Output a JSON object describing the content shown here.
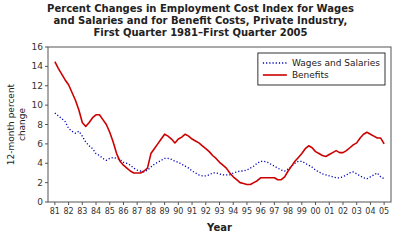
{
  "chart_data": {
    "type": "line",
    "title": "Percent Changes in Employment Cost Index for Wages\nand Salaries and for Benefit Costs, Private Industry,\nFirst Quarter 1981–First Quarter 2005",
    "x_label": "Year",
    "y_label": "12-month percent\nchange",
    "x": [
      81,
      81.25,
      81.5,
      81.75,
      82,
      82.25,
      82.5,
      82.75,
      83,
      83.25,
      83.5,
      83.75,
      84,
      84.25,
      84.5,
      84.75,
      85,
      85.25,
      85.5,
      85.75,
      86,
      86.25,
      86.5,
      86.75,
      87,
      87.25,
      87.5,
      87.75,
      88,
      88.25,
      88.5,
      88.75,
      89,
      89.25,
      89.5,
      89.75,
      90,
      90.25,
      90.5,
      90.75,
      91,
      91.25,
      91.5,
      91.75,
      92,
      92.25,
      92.5,
      92.75,
      93,
      93.25,
      93.5,
      93.75,
      94,
      94.25,
      94.5,
      94.75,
      95,
      95.25,
      95.5,
      95.75,
      96,
      96.25,
      96.5,
      96.75,
      97,
      97.25,
      97.5,
      97.75,
      98,
      98.25,
      98.5,
      98.75,
      99,
      99.25,
      99.5,
      99.75,
      100,
      100.25,
      100.5,
      100.75,
      101,
      101.25,
      101.5,
      101.75,
      102,
      102.25,
      102.5,
      102.75,
      103,
      103.25,
      103.5,
      103.75,
      104,
      104.25,
      104.5,
      104.75,
      105
    ],
    "xlim": [
      80.5,
      105.5
    ],
    "xticks": [
      81,
      82,
      83,
      84,
      85,
      86,
      87,
      88,
      89,
      90,
      91,
      92,
      93,
      94,
      95,
      96,
      97,
      98,
      99,
      {
        "value": 100,
        "label": "00"
      },
      {
        "value": 101,
        "label": "01"
      },
      {
        "value": 102,
        "label": "02"
      },
      {
        "value": 103,
        "label": "03"
      },
      {
        "value": 104,
        "label": "04"
      },
      {
        "value": 105,
        "label": "05"
      }
    ],
    "ylim": [
      0,
      16
    ],
    "yticks": [
      0,
      2,
      4,
      6,
      8,
      10,
      12,
      14,
      16
    ],
    "grid": false,
    "legend": "upper right",
    "series": [
      {
        "name": "Wages and Salaries",
        "color": "#0000bb",
        "line_style": "dotted",
        "values": [
          9.2,
          8.9,
          8.6,
          8.3,
          7.6,
          7.3,
          7.1,
          7.3,
          6.8,
          6.2,
          5.8,
          5.5,
          5.0,
          4.8,
          4.5,
          4.3,
          4.5,
          4.6,
          4.5,
          4.4,
          4.1,
          4.0,
          3.8,
          3.5,
          3.3,
          3.2,
          3.1,
          3.3,
          3.6,
          3.9,
          4.1,
          4.3,
          4.5,
          4.5,
          4.4,
          4.2,
          4.1,
          3.9,
          3.7,
          3.5,
          3.2,
          3.0,
          2.8,
          2.7,
          2.7,
          2.8,
          3.0,
          3.0,
          2.9,
          2.8,
          2.8,
          2.8,
          3.0,
          3.1,
          3.2,
          3.2,
          3.3,
          3.5,
          3.7,
          4.0,
          4.2,
          4.2,
          4.1,
          3.9,
          3.7,
          3.5,
          3.3,
          3.2,
          3.4,
          3.7,
          4.0,
          4.2,
          4.2,
          4.0,
          3.8,
          3.6,
          3.3,
          3.1,
          2.9,
          2.8,
          2.7,
          2.6,
          2.5,
          2.5,
          2.6,
          2.8,
          3.0,
          3.1,
          2.9,
          2.7,
          2.5,
          2.4,
          2.6,
          2.8,
          3.0,
          2.6,
          2.4
        ]
      },
      {
        "name": "Benefits",
        "color": "#cc0000",
        "line_style": "solid",
        "values": [
          14.5,
          13.8,
          13.2,
          12.6,
          12.1,
          11.3,
          10.5,
          9.5,
          8.2,
          7.8,
          8.2,
          8.7,
          9.0,
          9.0,
          8.5,
          8.0,
          7.2,
          6.2,
          5.0,
          4.2,
          3.8,
          3.5,
          3.2,
          3.0,
          3.0,
          3.0,
          3.2,
          3.5,
          5.0,
          5.5,
          6.0,
          6.5,
          7.0,
          6.8,
          6.5,
          6.1,
          6.5,
          6.7,
          7.0,
          6.8,
          6.5,
          6.3,
          6.1,
          5.8,
          5.5,
          5.2,
          4.8,
          4.5,
          4.1,
          3.8,
          3.5,
          3.0,
          2.6,
          2.3,
          2.0,
          1.9,
          1.8,
          1.8,
          2.0,
          2.2,
          2.5,
          2.5,
          2.5,
          2.5,
          2.5,
          2.3,
          2.3,
          2.6,
          3.2,
          3.7,
          4.2,
          4.6,
          5.0,
          5.5,
          5.8,
          5.6,
          5.2,
          5.0,
          4.8,
          4.7,
          4.9,
          5.1,
          5.3,
          5.1,
          5.1,
          5.3,
          5.6,
          5.9,
          6.1,
          6.6,
          7.0,
          7.2,
          7.0,
          6.8,
          6.6,
          6.6,
          6.0
        ]
      }
    ]
  }
}
